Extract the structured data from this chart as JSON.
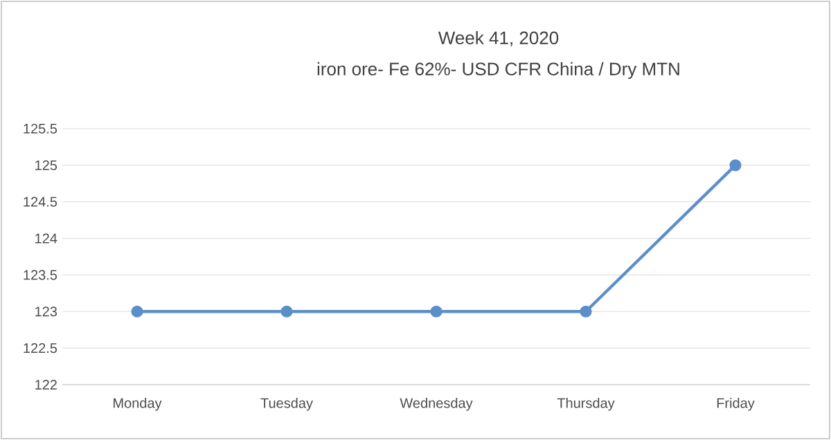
{
  "chart_data": {
    "type": "line",
    "title": "Week 41, 2020",
    "subtitle": "iron ore- Fe 62%- USD CFR China / Dry MTN",
    "categories": [
      "Monday",
      "Tuesday",
      "Wednesday",
      "Thursday",
      "Friday"
    ],
    "series": [
      {
        "color": "#5b8fc9",
        "values": [
          123,
          123,
          123,
          123,
          125
        ]
      }
    ],
    "ylim": [
      122,
      125.5
    ],
    "yticks": [
      122,
      122.5,
      123,
      123.5,
      124,
      124.5,
      125,
      125.5
    ],
    "grid": "y",
    "marker": "circle",
    "line_style": "solid"
  }
}
